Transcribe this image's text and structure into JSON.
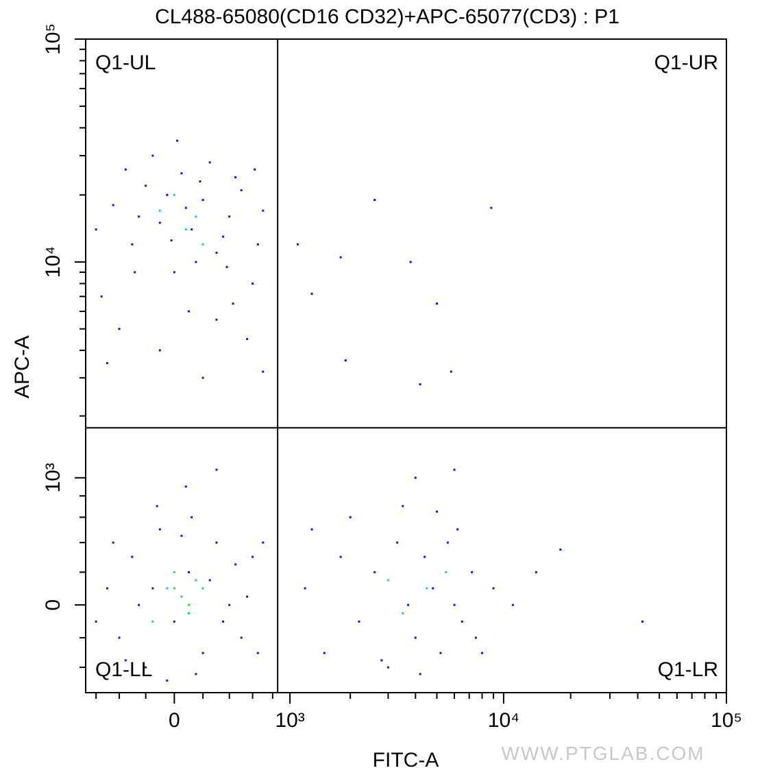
{
  "chart_data": {
    "type": "scatter",
    "title": "CL488-65080(CD16 CD32)+APC-65077(CD3) : P1",
    "x_label": "FITC-A",
    "y_label": "APC-A",
    "watermark": "WWW.PTGLAB.COM",
    "xscale": "biexponential",
    "yscale": "biexponential",
    "xlim": [
      -700,
      100000
    ],
    "ylim": [
      -600,
      100000
    ],
    "xticks": [
      0,
      {
        "value": 1000,
        "label": "10³"
      },
      {
        "value": 10000,
        "label": "10⁴"
      },
      {
        "value": 100000,
        "label": "10⁵"
      }
    ],
    "yticks": [
      0,
      {
        "value": 1000,
        "label": "10³"
      },
      {
        "value": 10000,
        "label": "10⁴"
      },
      {
        "value": 100000,
        "label": "10⁵"
      }
    ],
    "xminorticks": [
      -600,
      -400,
      -200,
      200,
      400,
      600,
      800,
      2000,
      3000,
      4000,
      5000,
      6000,
      7000,
      8000,
      9000,
      20000,
      30000,
      40000,
      50000,
      60000,
      70000,
      80000,
      90000
    ],
    "yminorticks": [
      -400,
      -200,
      200,
      400,
      600,
      800,
      2000,
      3000,
      4000,
      5000,
      6000,
      7000,
      8000,
      9000,
      20000,
      30000,
      40000,
      50000,
      60000,
      70000,
      80000,
      90000
    ],
    "gate": {
      "x": 855,
      "y": 1760
    },
    "quadrants": [
      "Q1-UL",
      "Q1-UR",
      "Q1-LL",
      "Q1-LR"
    ],
    "series": [
      {
        "color": "#1010f0",
        "x": [
          -450,
          -300,
          -200,
          -100,
          0,
          50,
          120,
          200,
          300,
          400,
          500,
          600,
          -550,
          -350,
          -150,
          100,
          250,
          350,
          450,
          650,
          700,
          -250,
          -50,
          150,
          80,
          -400,
          -100,
          300,
          550,
          20,
          380,
          -600,
          -20,
          180,
          620,
          -280,
          430,
          -500,
          200,
          700,
          -500,
          -400,
          -300,
          -200,
          -100,
          0,
          100,
          200,
          300,
          400,
          500,
          600,
          -450,
          -350,
          -150,
          50,
          150,
          250,
          350,
          450,
          550,
          650,
          -250,
          120,
          -50,
          700,
          -600,
          80,
          300,
          -120,
          1200,
          1500,
          1800,
          2200,
          2600,
          3000,
          3300,
          3700,
          4000,
          4400,
          4800,
          5200,
          5600,
          6000,
          6500,
          7200,
          8000,
          9000,
          11000,
          14000,
          2000,
          3500,
          5000,
          2800,
          4200,
          6200,
          1300,
          7500,
          18000,
          42000,
          6000,
          4000,
          1100,
          1800,
          2600,
          3800,
          5000,
          8800,
          1900,
          4200,
          5800,
          1300
        ],
        "values": [
          18000,
          12000,
          22000,
          15000,
          9000,
          25000,
          14000,
          19000,
          11000,
          16000,
          21000,
          8000,
          7000,
          26000,
          30000,
          6000,
          28000,
          13000,
          24000,
          12000,
          17000,
          16000,
          20000,
          10000,
          17500,
          5000,
          4000,
          5500,
          4500,
          35000,
          9500,
          14000,
          12500,
          23000,
          26000,
          9000,
          6500,
          3500,
          3000,
          3200,
          100,
          -200,
          300,
          -400,
          500,
          -100,
          200,
          -300,
          400,
          0,
          -200,
          300,
          400,
          -350,
          100,
          450,
          -450,
          150,
          -100,
          250,
          50,
          -300,
          0,
          600,
          -500,
          400,
          -100,
          900,
          1100,
          700,
          100,
          -300,
          300,
          -100,
          200,
          -400,
          400,
          0,
          -200,
          300,
          100,
          -300,
          400,
          0,
          -100,
          200,
          -300,
          100,
          0,
          200,
          600,
          700,
          650,
          -350,
          -450,
          500,
          500,
          -200,
          350,
          -100,
          1100,
          1000,
          12000,
          10500,
          19000,
          10000,
          6500,
          17500,
          3600,
          2800,
          3200,
          7200
        ]
      },
      {
        "color": "#10c8d8",
        "x": [
          80,
          -100,
          200,
          0,
          150,
          -50,
          100,
          0,
          200,
          -150,
          4500,
          3500,
          5500,
          3000
        ],
        "values": [
          14000,
          17000,
          12000,
          20000,
          16000,
          100,
          -50,
          200,
          100,
          -100,
          100,
          -50,
          200,
          150
        ]
      },
      {
        "color": "#30d040",
        "x": [
          50,
          100,
          0,
          150
        ],
        "values": [
          50,
          0,
          100,
          150
        ]
      }
    ]
  }
}
